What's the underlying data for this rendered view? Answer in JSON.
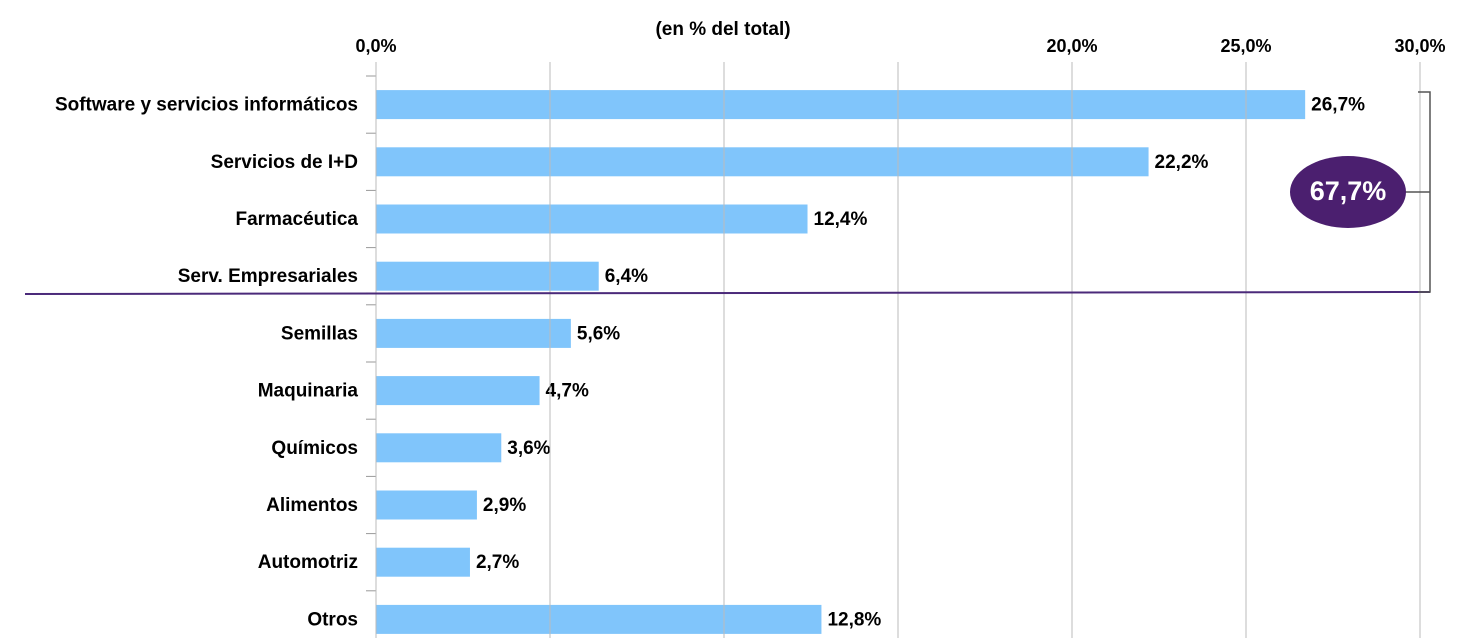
{
  "chart_data": {
    "type": "barh",
    "title": "(en % del total)",
    "categories": [
      "Software y servicios informáticos",
      "Servicios de I+D",
      "Farmacéutica",
      "Serv. Empresariales",
      "Semillas",
      "Maquinaria",
      "Químicos",
      "Alimentos",
      "Automotriz",
      "Otros"
    ],
    "values": [
      26.7,
      22.2,
      12.4,
      6.4,
      5.6,
      4.7,
      3.6,
      2.9,
      2.7,
      12.8
    ],
    "value_labels": [
      "26,7%",
      "22,2%",
      "12,4%",
      "6,4%",
      "5,6%",
      "4,7%",
      "3,6%",
      "2,9%",
      "2,7%",
      "12,8%"
    ],
    "color": "#80c5fb",
    "xlim": [
      0,
      30
    ],
    "xticks": [
      {
        "value": 0,
        "label": "0,0%"
      },
      {
        "value": 5,
        "label": null
      },
      {
        "value": 10,
        "label": null
      },
      {
        "value": 15,
        "label": null
      },
      {
        "value": 20,
        "label": "20,0%"
      },
      {
        "value": 25,
        "label": "25,0%"
      },
      {
        "value": 30,
        "label": "30,0%"
      }
    ],
    "grid": true,
    "annotation": "67,7%"
  }
}
